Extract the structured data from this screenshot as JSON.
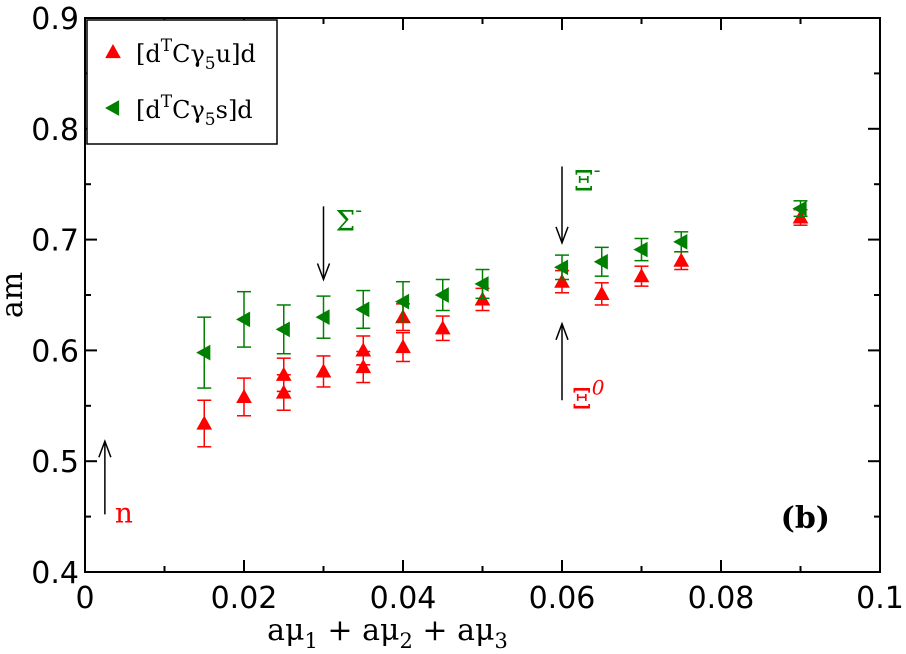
{
  "chart_data": {
    "type": "scatter",
    "xlabel": {
      "base": "aμ",
      "parts": [
        "1",
        "2",
        "3"
      ],
      "joiner": " + "
    },
    "ylabel": "am",
    "xlim": [
      0,
      0.1
    ],
    "ylim": [
      0.4,
      0.9
    ],
    "x_ticks": [
      0,
      0.02,
      0.04,
      0.06,
      0.08,
      0.1
    ],
    "x_tick_labels": [
      "0",
      "0.02",
      "0.04",
      "0.06",
      "0.08",
      "0.1"
    ],
    "y_ticks": [
      0.4,
      0.5,
      0.6,
      0.7,
      0.8,
      0.9
    ],
    "y_tick_labels": [
      "0.4",
      "0.5",
      "0.6",
      "0.7",
      "0.8",
      "0.9"
    ],
    "panel_label": "(b)",
    "legend": {
      "position": "top-left",
      "entries": [
        {
          "prefix": "[d",
          "sup": "T",
          "mid": "Cγ",
          "sub": "5",
          "suffix": "u]d"
        },
        {
          "prefix": "[d",
          "sup": "T",
          "mid": "Cγ",
          "sub": "5",
          "suffix": "s]d"
        }
      ]
    },
    "series": [
      {
        "name": "[dTCγ5u]d",
        "color": "#ff0000",
        "marker": "triangle-up",
        "points": [
          {
            "x": 0.015,
            "y": 0.534,
            "err": 0.021
          },
          {
            "x": 0.02,
            "y": 0.558,
            "err": 0.017
          },
          {
            "x": 0.025,
            "y": 0.562,
            "err": 0.016
          },
          {
            "x": 0.025,
            "y": 0.578,
            "err": 0.015
          },
          {
            "x": 0.03,
            "y": 0.581,
            "err": 0.014
          },
          {
            "x": 0.035,
            "y": 0.585,
            "err": 0.014
          },
          {
            "x": 0.035,
            "y": 0.6,
            "err": 0.013
          },
          {
            "x": 0.04,
            "y": 0.603,
            "err": 0.013
          },
          {
            "x": 0.04,
            "y": 0.63,
            "err": 0.012
          },
          {
            "x": 0.045,
            "y": 0.62,
            "err": 0.011
          },
          {
            "x": 0.05,
            "y": 0.646,
            "err": 0.01
          },
          {
            "x": 0.06,
            "y": 0.662,
            "err": 0.01
          },
          {
            "x": 0.065,
            "y": 0.651,
            "err": 0.01
          },
          {
            "x": 0.07,
            "y": 0.667,
            "err": 0.009
          },
          {
            "x": 0.075,
            "y": 0.681,
            "err": 0.008
          },
          {
            "x": 0.09,
            "y": 0.72,
            "err": 0.007
          }
        ]
      },
      {
        "name": "[dTCγ5s]d",
        "color": "#008000",
        "marker": "triangle-left",
        "points": [
          {
            "x": 0.015,
            "y": 0.598,
            "err": 0.032
          },
          {
            "x": 0.02,
            "y": 0.628,
            "err": 0.025
          },
          {
            "x": 0.025,
            "y": 0.619,
            "err": 0.022
          },
          {
            "x": 0.03,
            "y": 0.63,
            "err": 0.019
          },
          {
            "x": 0.035,
            "y": 0.637,
            "err": 0.017
          },
          {
            "x": 0.04,
            "y": 0.644,
            "err": 0.018
          },
          {
            "x": 0.045,
            "y": 0.65,
            "err": 0.014
          },
          {
            "x": 0.05,
            "y": 0.66,
            "err": 0.013
          },
          {
            "x": 0.06,
            "y": 0.675,
            "err": 0.011
          },
          {
            "x": 0.065,
            "y": 0.68,
            "err": 0.013
          },
          {
            "x": 0.07,
            "y": 0.691,
            "err": 0.01
          },
          {
            "x": 0.075,
            "y": 0.698,
            "err": 0.009
          },
          {
            "x": 0.09,
            "y": 0.728,
            "err": 0.007
          }
        ]
      }
    ],
    "annotations": [
      {
        "id": "sigma",
        "text": "Σ",
        "sup": "-",
        "color": "#008000",
        "italic": false,
        "arrow": {
          "x": 0.03,
          "y_from": 0.73,
          "y_to": 0.664
        }
      },
      {
        "id": "xi-minus",
        "text": "Ξ",
        "sup": "-",
        "color": "#008000",
        "italic": false,
        "arrow": {
          "x": 0.06,
          "y_from": 0.766,
          "y_to": 0.697
        }
      },
      {
        "id": "xi-zero",
        "text": "Ξ",
        "sup": "0",
        "color": "#ff0000",
        "italic": false,
        "arrow": {
          "x": 0.06,
          "y_from": 0.555,
          "y_to": 0.624
        }
      },
      {
        "id": "nucleon",
        "text": "n",
        "sup": "",
        "color": "#ff0000",
        "italic": false,
        "arrow": {
          "x": 0.0025,
          "y_from": 0.452,
          "y_to": 0.518
        }
      }
    ]
  }
}
